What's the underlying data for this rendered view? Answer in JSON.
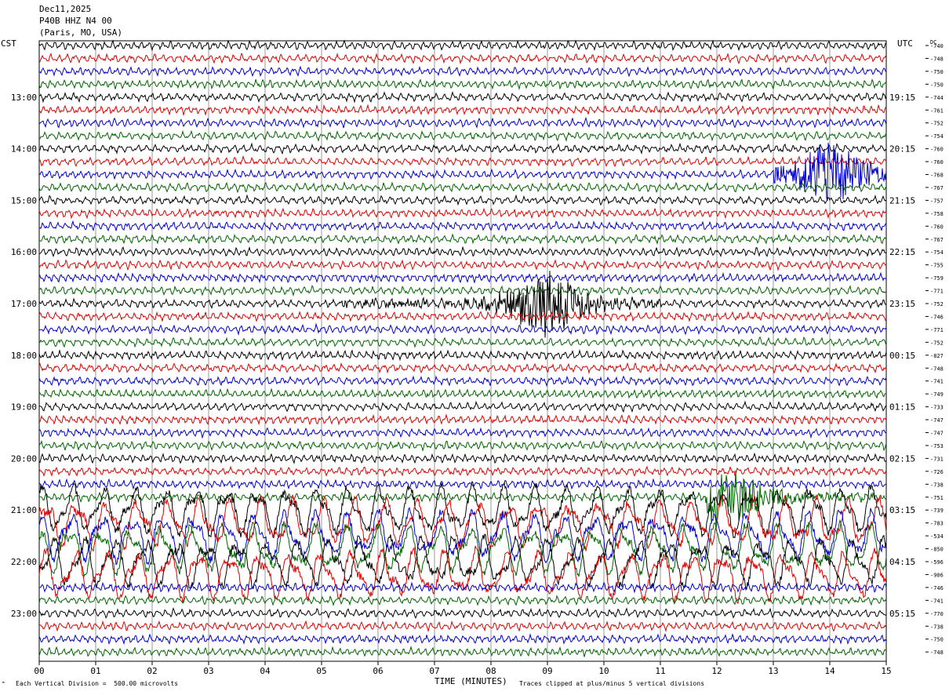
{
  "header": {
    "date": "Dec11,2025",
    "station": "P40B HHZ N4 00",
    "location": "(Paris, MO, USA)"
  },
  "left_timezone": "CST",
  "right_timezone": "UTC",
  "dc_label": "DC",
  "footer": {
    "scale": "Each Vertical Division =  500.00 microvolts",
    "xlabel": "TIME (MINUTES)",
    "clip_note": "Traces clipped at plus/minus 5 vertical divisions"
  },
  "colors": {
    "trace_cycle": [
      "#000000",
      "#dd0000",
      "#0000cc",
      "#006400"
    ],
    "grid": "#999999"
  },
  "chart_data": {
    "type": "line",
    "title": "",
    "xlabel": "TIME (MINUTES)",
    "x_range": [
      0,
      15
    ],
    "x_ticks": [
      "00",
      "01",
      "02",
      "03",
      "04",
      "05",
      "06",
      "07",
      "08",
      "09",
      "10",
      "11",
      "12",
      "13",
      "14",
      "15"
    ],
    "rows_per_hour": 4,
    "row_count": 48,
    "left_hour_labels": [
      "13:00",
      "14:00",
      "15:00",
      "16:00",
      "17:00",
      "18:00",
      "19:00",
      "20:00",
      "21:00",
      "22:00",
      "23:00"
    ],
    "right_hour_labels": [
      "19:15",
      "20:15",
      "21:15",
      "22:15",
      "23:15",
      "00:15",
      "01:15",
      "02:15",
      "03:15",
      "04:15",
      "05:15"
    ],
    "first_labeled_row": 4,
    "dc_offsets": [
      "-740",
      "-748",
      "-750",
      "-750",
      "-744",
      "-761",
      "-752",
      "-754",
      "-760",
      "-760",
      "-768",
      "-767",
      "-757",
      "-758",
      "-760",
      "-767",
      "-754",
      "-755",
      "-759",
      "-771",
      "-752",
      "-746",
      "-771",
      "-752",
      "-827",
      "-748",
      "-741",
      "-749",
      "-733",
      "-747",
      "-747",
      "-753",
      "-731",
      "-726",
      "-738",
      "-751",
      "-739",
      "-783",
      "-534",
      "-850",
      "-596",
      "-906",
      "-746",
      "-741",
      "-770",
      "-738",
      "-750",
      "-748"
    ],
    "events": [
      {
        "row": 10,
        "start_min": 13.0,
        "end_min": 15.0,
        "peak_min": 14.0
      },
      {
        "row": 20,
        "start_min": 5.3,
        "end_min": 11.0,
        "peak_min": 9.0
      },
      {
        "row": 35,
        "start_min": 11.8,
        "end_min": 15.0,
        "peak_min": 12.1
      }
    ],
    "noisy_rows_range": [
      36,
      41
    ]
  }
}
